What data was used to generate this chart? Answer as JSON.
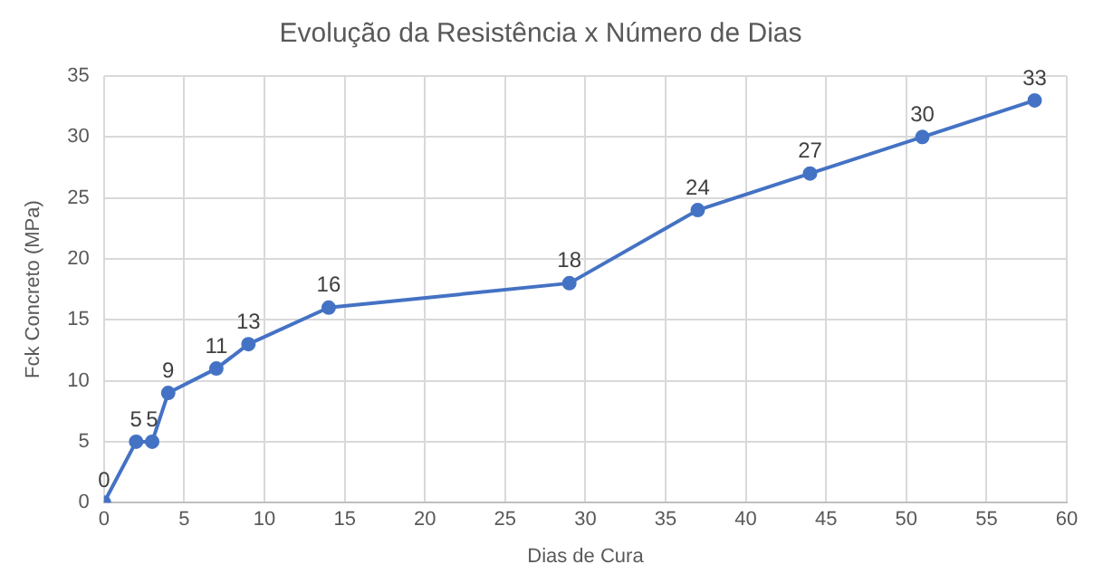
{
  "chart_data": {
    "type": "line",
    "title": "Evolução da Resistência x Número de Dias",
    "xlabel": "Dias de Cura",
    "ylabel": "Fck Concreto (MPa)",
    "x": [
      0,
      2,
      3,
      4,
      7,
      9,
      14,
      29,
      37,
      44,
      51,
      58
    ],
    "values": [
      0,
      5,
      5,
      9,
      11,
      13,
      16,
      18,
      24,
      27,
      30,
      33
    ],
    "color": "#4472c4",
    "marker": "circle",
    "data_labels": true,
    "grid": true,
    "xlim": [
      0,
      60
    ],
    "xticks": [
      0,
      5,
      10,
      15,
      20,
      25,
      30,
      35,
      40,
      45,
      50,
      55,
      60
    ],
    "ylim": [
      0,
      35
    ],
    "yticks": [
      0,
      5,
      10,
      15,
      20,
      25,
      30,
      35
    ]
  }
}
